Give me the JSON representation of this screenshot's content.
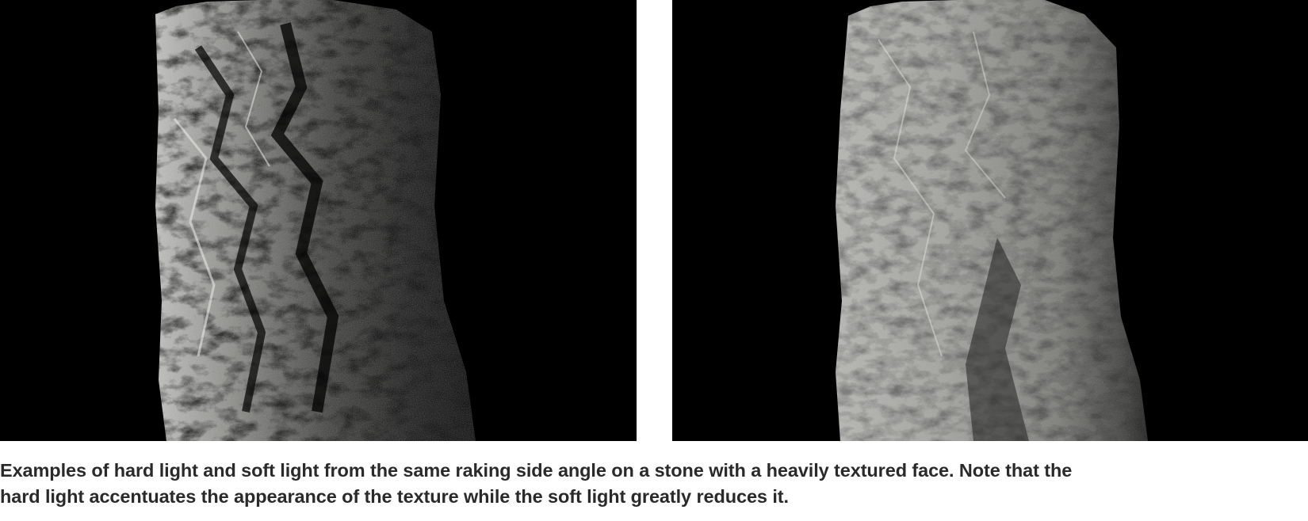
{
  "figure": {
    "images": [
      {
        "subject": "stone-hard-light",
        "lighting": "hard"
      },
      {
        "subject": "stone-soft-light",
        "lighting": "soft"
      }
    ],
    "caption": {
      "line1": "Examples of hard light and soft light from the same raking side angle on a stone with a heavily textured face. Note that the",
      "line2": "hard light accentuates the appearance of the texture while the soft light greatly reduces it."
    }
  }
}
